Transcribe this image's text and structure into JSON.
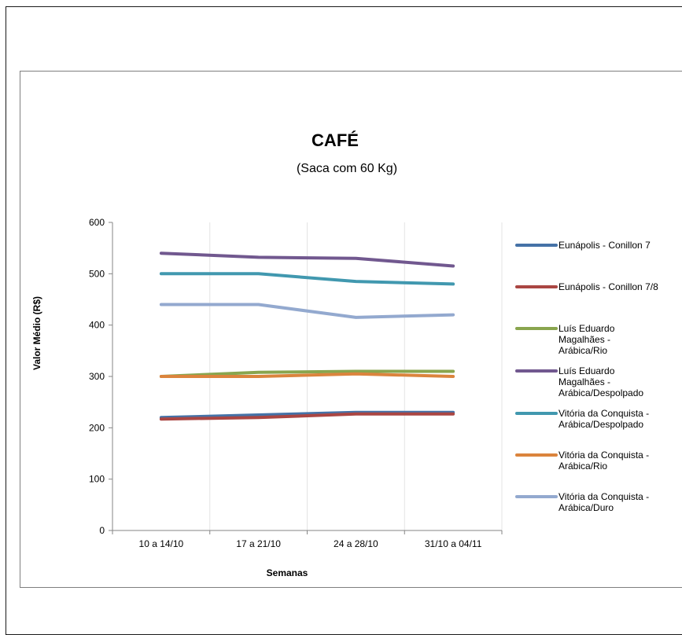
{
  "chart_data": {
    "type": "line",
    "title": "CAFÉ",
    "subtitle": "(Saca com 60 Kg)",
    "xlabel": "Semanas",
    "ylabel": "Valor Médio (R$)",
    "categories": [
      "10 a 14/10",
      "17 a 21/10",
      "24 a 28/10",
      "31/10 a 04/11"
    ],
    "ylim": [
      0,
      600
    ],
    "yticks": [
      0,
      100,
      200,
      300,
      400,
      500,
      600
    ],
    "grid": "vertical",
    "legend_position": "right",
    "series": [
      {
        "name": "Eunápolis - Conillon 7",
        "color": "#4572A7",
        "values": [
          220,
          225,
          230,
          230
        ]
      },
      {
        "name": "Eunápolis - Conillon 7/8",
        "color": "#AA4643",
        "values": [
          217,
          220,
          227,
          227
        ]
      },
      {
        "name": "Luís Eduardo Magalhães - Arábica/Rio",
        "color": "#89A54E",
        "values": [
          300,
          308,
          310,
          310
        ]
      },
      {
        "name": "Luís Eduardo Magalhães - Arábica/Despolpado",
        "color": "#71588F",
        "values": [
          540,
          532,
          530,
          515
        ]
      },
      {
        "name": "Vitória da Conquista - Arábica/Despolpado",
        "color": "#4198AF",
        "values": [
          500,
          500,
          485,
          480
        ]
      },
      {
        "name": "Vitória da Conquista - Arábica/Rio",
        "color": "#DB843D",
        "values": [
          300,
          300,
          305,
          300
        ]
      },
      {
        "name": "Vitória da Conquista - Arábica/Duro",
        "color": "#93A9CF",
        "values": [
          440,
          440,
          415,
          420
        ]
      }
    ],
    "legend_labels": [
      [
        "Eunápolis - Conillon 7"
      ],
      [
        "Eunápolis - Conillon 7/8"
      ],
      [
        "Luís Eduardo",
        "Magalhães -",
        "Arábica/Rio"
      ],
      [
        "Luís Eduardo",
        "Magalhães -",
        "Arábica/Despolpado"
      ],
      [
        "Vitória da Conquista -",
        "Arábica/Despolpado"
      ],
      [
        "Vitória da Conquista -",
        "Arábica/Rio"
      ],
      [
        "Vitória da Conquista -",
        "Arábica/Duro"
      ]
    ]
  }
}
